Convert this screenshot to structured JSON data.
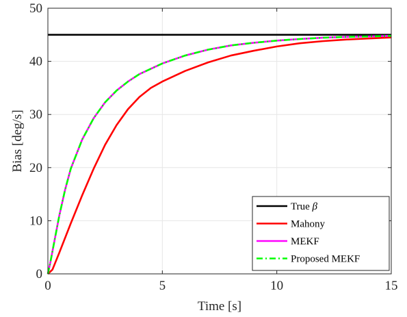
{
  "chart_data": {
    "type": "line",
    "xlabel": "Time [s]",
    "ylabel": "Bias [deg/s]",
    "xlim": [
      0,
      15
    ],
    "ylim": [
      0,
      50
    ],
    "xticks": [
      0,
      5,
      10,
      15
    ],
    "yticks": [
      0,
      10,
      20,
      30,
      40,
      50
    ],
    "grid": true,
    "legend_position": "bottom-right",
    "series": [
      {
        "name": "True β",
        "name_prefix": "True ",
        "name_symbol": "β",
        "color": "#000000",
        "style": "solid",
        "x": [
          0,
          15
        ],
        "y": [
          45,
          45
        ]
      },
      {
        "name": "Mahony",
        "color": "#ff0000",
        "style": "solid",
        "x": [
          0,
          0.2,
          0.5,
          1,
          1.5,
          2,
          2.5,
          3,
          3.5,
          4,
          4.5,
          5,
          5.5,
          6,
          7,
          8,
          9,
          10,
          11,
          12,
          13,
          14,
          15
        ],
        "y": [
          0,
          0.8,
          4,
          9.5,
          14.8,
          19.8,
          24.3,
          28,
          31,
          33.3,
          35,
          36.2,
          37.2,
          38.2,
          39.8,
          41.1,
          42,
          42.8,
          43.4,
          43.8,
          44.1,
          44.3,
          44.5
        ]
      },
      {
        "name": "MEKF",
        "color": "#ff00ff",
        "style": "solid",
        "x": [
          0,
          0.1,
          0.3,
          0.5,
          0.75,
          1,
          1.5,
          2,
          2.5,
          3,
          3.5,
          4,
          5,
          6,
          7,
          8,
          9,
          10,
          11,
          12,
          13,
          14,
          15
        ],
        "y": [
          0,
          2,
          6.5,
          11,
          15.8,
          19.8,
          25.3,
          29.3,
          32.3,
          34.5,
          36.2,
          37.6,
          39.6,
          41.1,
          42.2,
          43,
          43.5,
          43.9,
          44.2,
          44.45,
          44.6,
          44.7,
          44.8
        ]
      },
      {
        "name": "Proposed MEKF",
        "color": "#00ff00",
        "style": "dash-dot",
        "x": [
          0,
          0.1,
          0.3,
          0.5,
          0.75,
          1,
          1.5,
          2,
          2.5,
          3,
          3.5,
          4,
          5,
          6,
          7,
          8,
          9,
          10,
          11,
          12,
          13,
          14,
          15
        ],
        "y": [
          0,
          2,
          6.5,
          11,
          15.8,
          19.8,
          25.3,
          29.3,
          32.3,
          34.5,
          36.2,
          37.6,
          39.6,
          41.1,
          42.2,
          43,
          43.5,
          43.9,
          44.2,
          44.45,
          44.6,
          44.7,
          44.8
        ]
      }
    ]
  }
}
